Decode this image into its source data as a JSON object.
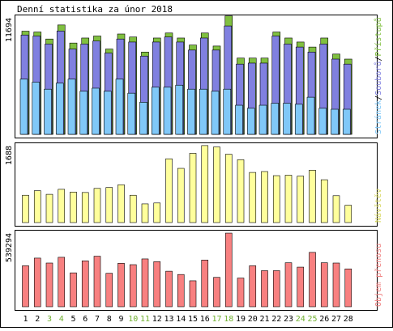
{
  "title": "Denní statistika za únor 2018",
  "colors": {
    "background": "#ffffff",
    "frame": "#000000",
    "hits": "#80c040",
    "files": "#8080e0",
    "pages": "#80c8f8",
    "visits": "#ffff9c",
    "volume": "#f88080",
    "weekend_label": "#70b030",
    "weekday_label": "#000000",
    "legend_separator": "#000000"
  },
  "weekend_days": [
    3,
    4,
    10,
    11,
    17,
    18,
    24,
    25
  ],
  "chart_data": [
    {
      "type": "bar",
      "title": "Denní statistika za únor 2018",
      "categories": [
        "1",
        "2",
        "3",
        "4",
        "5",
        "6",
        "7",
        "8",
        "9",
        "10",
        "11",
        "12",
        "13",
        "14",
        "15",
        "16",
        "17",
        "18",
        "19",
        "20",
        "21",
        "22",
        "23",
        "24",
        "25",
        "26",
        "27",
        "28"
      ],
      "ymax_label": "11694",
      "ylim": [
        0,
        11694
      ],
      "legend": "Stránek/Souborů/Přístupů",
      "legend_parts": [
        {
          "text": "Stránek",
          "color": "#80c8f8"
        },
        {
          "text": "/",
          "color": "#000000"
        },
        {
          "text": "Souborů",
          "color": "#8080e0"
        },
        {
          "text": "/",
          "color": "#000000"
        },
        {
          "text": "Přístupů",
          "color": "#80c040"
        }
      ],
      "series": [
        {
          "name": "Přístupů",
          "values": [
            10280,
            10200,
            9500,
            10900,
            9100,
            9600,
            9800,
            8500,
            10000,
            9700,
            8200,
            9600,
            10100,
            9600,
            8900,
            10100,
            8800,
            11800,
            7600,
            7600,
            7600,
            10200,
            9600,
            9200,
            8700,
            9600,
            8000,
            7500
          ]
        },
        {
          "name": "Souborů",
          "values": [
            9900,
            9800,
            9000,
            10300,
            8500,
            9000,
            9300,
            8100,
            9500,
            9200,
            7800,
            9200,
            9700,
            9200,
            8400,
            9600,
            8400,
            10800,
            7000,
            7100,
            7100,
            9800,
            9000,
            8700,
            8200,
            9000,
            7500,
            7000
          ]
        },
        {
          "name": "Stránek",
          "values": [
            5500,
            5200,
            4500,
            5100,
            5500,
            4300,
            4600,
            4300,
            5500,
            4100,
            3200,
            4700,
            4700,
            4900,
            4500,
            4500,
            4300,
            4500,
            2900,
            2600,
            2900,
            3100,
            3100,
            3000,
            3700,
            2600,
            2500,
            2500
          ]
        }
      ]
    },
    {
      "type": "bar",
      "categories": [
        "1",
        "2",
        "3",
        "4",
        "5",
        "6",
        "7",
        "8",
        "9",
        "10",
        "11",
        "12",
        "13",
        "14",
        "15",
        "16",
        "17",
        "18",
        "19",
        "20",
        "21",
        "22",
        "23",
        "24",
        "25",
        "26",
        "27",
        "28"
      ],
      "ymax_label": "1688",
      "ylim": [
        0,
        1688
      ],
      "legend": "Návštěv",
      "series": [
        {
          "name": "Návštěv",
          "values": [
            600,
            700,
            620,
            730,
            670,
            660,
            750,
            770,
            830,
            600,
            410,
            430,
            1400,
            1190,
            1520,
            1690,
            1660,
            1500,
            1380,
            1100,
            1120,
            1030,
            1040,
            1020,
            1150,
            940,
            590,
            380
          ]
        }
      ]
    },
    {
      "type": "bar",
      "categories": [
        "1",
        "2",
        "3",
        "4",
        "5",
        "6",
        "7",
        "8",
        "9",
        "10",
        "11",
        "12",
        "13",
        "14",
        "15",
        "16",
        "17",
        "18",
        "19",
        "20",
        "21",
        "22",
        "23",
        "24",
        "25",
        "26",
        "27",
        "28"
      ],
      "ymax_label": "539294",
      "ylim": [
        0,
        539294
      ],
      "legend": "Objem přenosu",
      "series": [
        {
          "name": "Objem přenosu",
          "values": [
            300000,
            356000,
            320000,
            362000,
            248000,
            336000,
            370000,
            245000,
            318000,
            308000,
            350000,
            330000,
            260000,
            236000,
            190000,
            342000,
            215000,
            539000,
            210000,
            300000,
            264000,
            264000,
            322000,
            290000,
            398000,
            322000,
            320000,
            277000
          ]
        }
      ]
    }
  ]
}
